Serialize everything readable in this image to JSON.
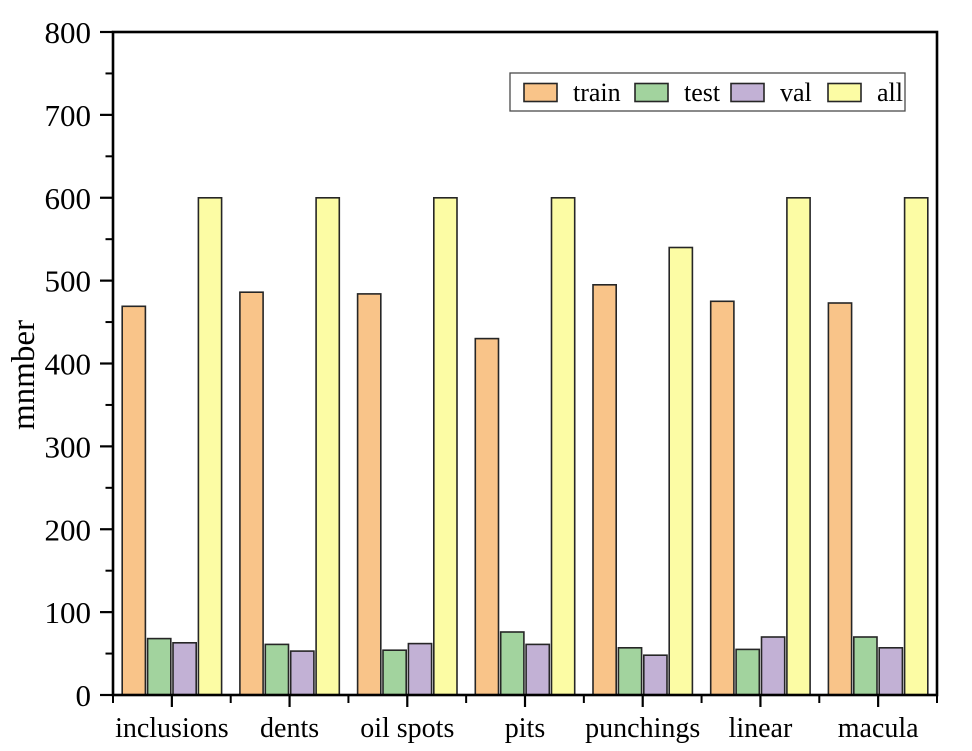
{
  "figure": {
    "background": "#ffffff",
    "axis_color": "#000000"
  },
  "chart_data": {
    "type": "bar",
    "title": "",
    "xlabel": "",
    "ylabel": "mnmber",
    "ylim": [
      0,
      800
    ],
    "y_major_step": 100,
    "y_minor_step": 50,
    "grid": false,
    "legend_position": "top-center",
    "bar_edge_color": "#262626",
    "categories": [
      "inclusions",
      "dents",
      "oil spots",
      "pits",
      "punchings",
      "linear",
      "macula"
    ],
    "y_tick_labels": [
      "0",
      "100",
      "200",
      "300",
      "400",
      "500",
      "600",
      "700",
      "800"
    ],
    "series": [
      {
        "name": "train",
        "color": "#F9C489",
        "values": [
          469,
          486,
          484,
          430,
          495,
          475,
          473
        ]
      },
      {
        "name": "test",
        "color": "#A2D39E",
        "values": [
          68,
          61,
          54,
          76,
          57,
          55,
          70
        ]
      },
      {
        "name": "val",
        "color": "#C2B1D5",
        "values": [
          63,
          53,
          62,
          61,
          48,
          70,
          57
        ]
      },
      {
        "name": "all",
        "color": "#FCFCA4",
        "values": [
          600,
          600,
          600,
          600,
          540,
          600,
          600
        ]
      }
    ]
  }
}
